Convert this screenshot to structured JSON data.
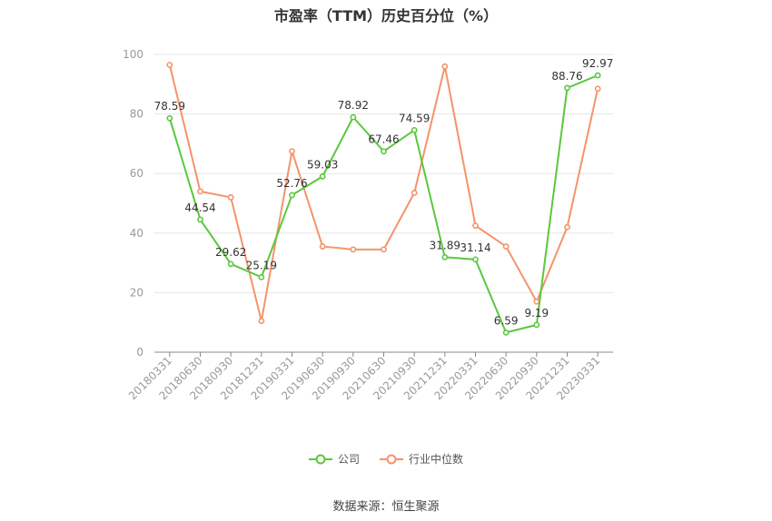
{
  "chart_data": {
    "type": "line",
    "title": "市盈率（TTM）历史百分位（%）",
    "categories": [
      "20180331",
      "20180630",
      "20180930",
      "20181231",
      "20190331",
      "20190630",
      "20190930",
      "20210630",
      "20210930",
      "20211231",
      "20220331",
      "20220630",
      "20220930",
      "20221231",
      "20230331"
    ],
    "ylim": [
      0,
      100
    ],
    "yticks": [
      0,
      20,
      40,
      60,
      80,
      100
    ],
    "grid": true,
    "legend_position": "bottom",
    "series": [
      {
        "name": "公司",
        "color": "#5ac83c",
        "show_labels": true,
        "values": [
          78.59,
          44.54,
          29.62,
          25.19,
          52.76,
          59.03,
          78.92,
          67.46,
          74.59,
          31.89,
          31.14,
          6.59,
          9.19,
          88.76,
          92.97
        ],
        "labels": [
          "78.59",
          "44.54",
          "29.62",
          "25.19",
          "52.76",
          "59.03",
          "78.92",
          "67.46",
          "74.59",
          "31.89",
          "31.14",
          "6.59",
          "9.19",
          "88.76",
          "92.97"
        ]
      },
      {
        "name": "行业中位数",
        "color": "#f5936a",
        "show_labels": false,
        "values": [
          96.5,
          54.0,
          52.0,
          10.5,
          67.5,
          35.5,
          34.5,
          34.5,
          53.5,
          96.0,
          42.5,
          35.5,
          17.0,
          42.0,
          88.5
        ]
      }
    ]
  },
  "source": "数据来源：恒生聚源"
}
